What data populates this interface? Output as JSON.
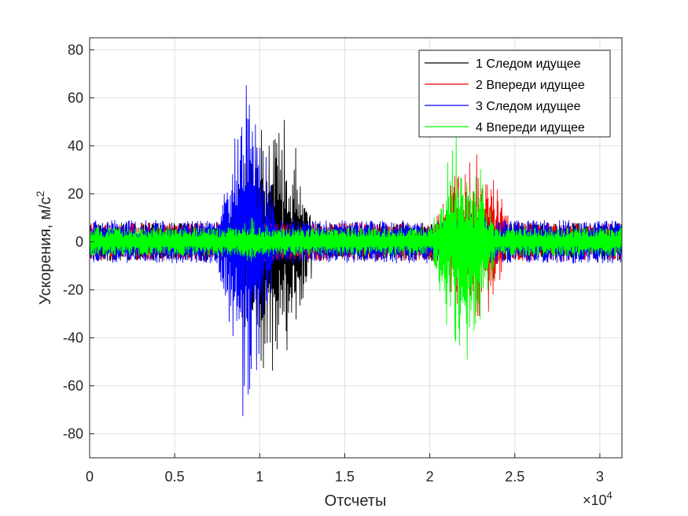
{
  "chart_data": {
    "type": "line",
    "xlabel": "Отсчеты",
    "ylabel": "Ускорения, м/с",
    "ylabel_superscript": "2",
    "x_exponent_label": "×10",
    "x_exponent_power": "4",
    "xlim": [
      0,
      31300
    ],
    "ylim": [
      -90,
      85
    ],
    "grid": true,
    "legend_position": "top-right",
    "x_ticks": [
      0,
      5000,
      10000,
      15000,
      20000,
      25000,
      30000
    ],
    "x_tick_labels": [
      "0",
      "0.5",
      "1",
      "1.5",
      "2",
      "2.5",
      "3"
    ],
    "y_ticks": [
      80,
      60,
      40,
      20,
      0,
      -20,
      -40,
      -60,
      -80
    ],
    "y_tick_labels": [
      "80",
      "60",
      "40",
      "20",
      "0",
      "-20",
      "-40",
      "-60",
      "-80"
    ],
    "series": [
      {
        "name": "1 Следом идущее",
        "color": "#000000",
        "noise_amplitude": 8,
        "bursts": [
          {
            "x_start": 7800,
            "x_end": 13500,
            "max": 68,
            "min": -71
          },
          {
            "x_start": 20000,
            "x_end": 22500,
            "max": 12,
            "min": -14
          }
        ]
      },
      {
        "name": "2 Впереди идущее",
        "color": "#ff0000",
        "noise_amplitude": 8,
        "bursts": [
          {
            "x_start": 7600,
            "x_end": 11500,
            "max": 14,
            "min": -16
          },
          {
            "x_start": 20000,
            "x_end": 25000,
            "max": 52,
            "min": -45
          }
        ]
      },
      {
        "name": "3 Следом идущее",
        "color": "#0000ff",
        "noise_amplitude": 9,
        "bursts": [
          {
            "x_start": 7500,
            "x_end": 11000,
            "max": 83,
            "min": -88
          },
          {
            "x_start": 20000,
            "x_end": 24500,
            "max": 18,
            "min": -20
          }
        ]
      },
      {
        "name": "4 Впереди идущее",
        "color": "#00ff00",
        "noise_amplitude": 6,
        "bursts": [
          {
            "x_start": 7500,
            "x_end": 11500,
            "max": 12,
            "min": -12
          },
          {
            "x_start": 20000,
            "x_end": 24000,
            "max": 55,
            "min": -61
          }
        ]
      }
    ]
  }
}
